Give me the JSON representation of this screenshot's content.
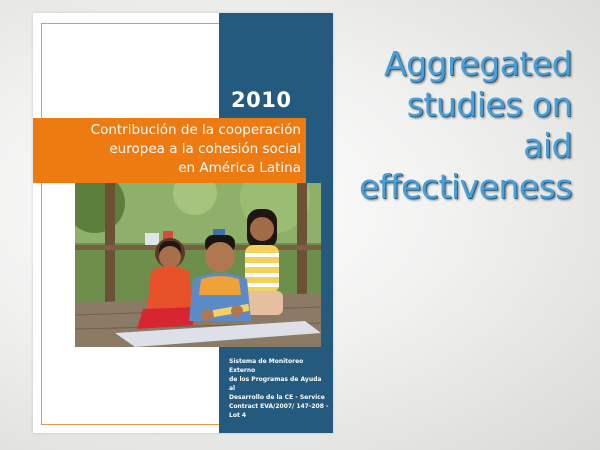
{
  "cover": {
    "year": "2010",
    "title_lines": [
      "Contribución de la cooperación",
      "europea a la cohesión social",
      "en América Latina"
    ],
    "caption_lines": [
      "Sistema de Monitoreo Externo",
      "de los Programas de Ayuda al",
      "Desarrollo de la CE - Service",
      "Contract EVA/2007/ 147-208 -",
      "Lot 4"
    ],
    "colors": {
      "panel_blue": "#245a7d",
      "title_orange": "#ee7a12",
      "frame_orange": "#e39a4c"
    },
    "photo_icon": "children-photo"
  },
  "headline": {
    "lines": [
      "Aggregated",
      "studies on",
      "aid",
      "effectiveness"
    ],
    "color": "#4a9fd6"
  }
}
